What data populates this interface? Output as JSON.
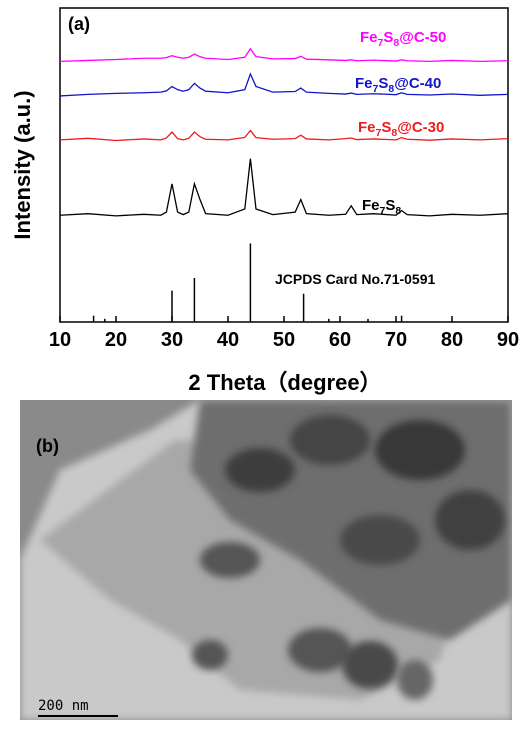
{
  "chart_data": {
    "type": "line",
    "panel_label": "(a)",
    "x_label": "2 Theta（degree）",
    "y_label": "Intensity (a.u.)",
    "xlim": [
      10,
      90
    ],
    "xticks": [
      10,
      20,
      30,
      40,
      50,
      60,
      70,
      80,
      90
    ],
    "ylim": [
      0,
      100
    ],
    "x": [
      10,
      15,
      20,
      25,
      28,
      29,
      30,
      31,
      32,
      33,
      34,
      35,
      36,
      40,
      43,
      44,
      45,
      48,
      52,
      53,
      54,
      58,
      61,
      62,
      63,
      66,
      70,
      71,
      72,
      76,
      80,
      85,
      90
    ],
    "series": [
      {
        "name": "Fe7S8@C-50",
        "color": "#ff00ff",
        "values": [
          83,
          83.3,
          83.6,
          84,
          84,
          84.2,
          84.8,
          84.3,
          84,
          84.3,
          85.3,
          84.5,
          84,
          83.6,
          84.3,
          87,
          84.5,
          83.8,
          83.9,
          84.6,
          83.7,
          83.5,
          83.3,
          83.5,
          83.2,
          83.4,
          83.1,
          83.5,
          83.2,
          83,
          83.3,
          83,
          83.2
        ]
      },
      {
        "name": "Fe7S8@C-40",
        "color": "#1414c8",
        "values": [
          72,
          72.5,
          72.8,
          73,
          73.2,
          73.6,
          75,
          74,
          73.5,
          74,
          76,
          74.5,
          73.5,
          73,
          74,
          79,
          75,
          73.2,
          73.4,
          74.5,
          73.2,
          72.8,
          72.6,
          72.9,
          72.5,
          72.7,
          72.4,
          73,
          72.5,
          72.3,
          72.6,
          72.2,
          72.5
        ]
      },
      {
        "name": "Fe7S8@C-30",
        "color": "#ee1c1c",
        "values": [
          58,
          58.5,
          57.8,
          58.3,
          58,
          58.6,
          60.5,
          58.4,
          58,
          58.5,
          60.5,
          59,
          58.2,
          58,
          58.8,
          61,
          58.7,
          58.2,
          58.4,
          59.5,
          58.3,
          58,
          58.4,
          58.6,
          58.1,
          58.3,
          58,
          58.7,
          58.2,
          57.9,
          58.3,
          58,
          58.4
        ]
      },
      {
        "name": "Fe7S8",
        "color": "#000000",
        "values": [
          34,
          34.5,
          33.8,
          34.3,
          34,
          35,
          44,
          35,
          34.2,
          35,
          44,
          39,
          34.5,
          34,
          36,
          52,
          36,
          34.2,
          35,
          39,
          34.5,
          34,
          34.3,
          37,
          34.2,
          34.5,
          34,
          35.5,
          34.2,
          33.8,
          34.3,
          34,
          34.5
        ]
      }
    ],
    "reference": {
      "name": "JCPDS Card No.71-0591",
      "color": "#000000",
      "x": [
        16,
        18,
        30,
        34,
        44,
        53.5,
        58,
        65,
        71
      ],
      "values": [
        2,
        1,
        10,
        14,
        25,
        9,
        1,
        1,
        2
      ]
    }
  },
  "panel_b": {
    "label": "(b)",
    "scale_bar": "200 nm"
  }
}
